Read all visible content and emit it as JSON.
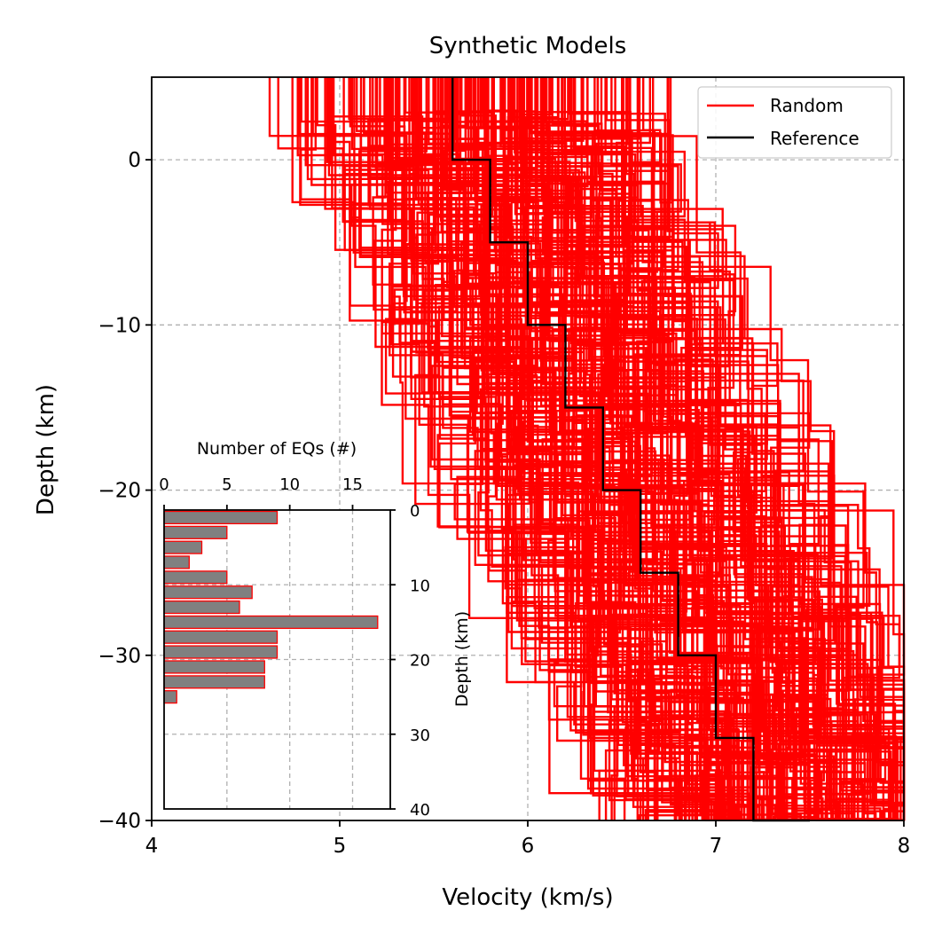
{
  "chart_data": [
    {
      "type": "line",
      "title": "Synthetic Models",
      "xlabel": "Velocity (km/s)",
      "ylabel": "Depth (km)",
      "xlim": [
        4,
        8
      ],
      "ylim": [
        -40,
        5
      ],
      "xticks": [
        "4",
        "5",
        "6",
        "7",
        "8"
      ],
      "yticks": [
        "0",
        "−10",
        "−20",
        "−30",
        "−40"
      ],
      "grid": true,
      "legend_position": "top-right",
      "colors": {
        "random": "#ff0000",
        "reference": "#000000"
      },
      "series": [
        {
          "name": "Random",
          "note_count_estimate": 200,
          "step_profile": true
        },
        {
          "name": "Reference",
          "steps": [
            {
              "velocity": 5.6,
              "top": 5,
              "bottom": 0
            },
            {
              "velocity": 5.8,
              "top": 0,
              "bottom": -5
            },
            {
              "velocity": 6.0,
              "top": -5,
              "bottom": -10
            },
            {
              "velocity": 6.2,
              "top": -10,
              "bottom": -15
            },
            {
              "velocity": 6.4,
              "top": -15,
              "bottom": -20
            },
            {
              "velocity": 6.6,
              "top": -20,
              "bottom": -25
            },
            {
              "velocity": 6.8,
              "top": -25,
              "bottom": -30
            },
            {
              "velocity": 7.0,
              "top": -30,
              "bottom": -35
            },
            {
              "velocity": 7.2,
              "top": -35,
              "bottom": -40
            }
          ]
        }
      ]
    },
    {
      "type": "bar",
      "orientation": "horizontal",
      "title": "",
      "xlabel": "Number of EQs (#)",
      "ylabel": "Depth (km)",
      "xlim": [
        0,
        18
      ],
      "ylim": [
        40,
        0
      ],
      "xticks": [
        "0",
        "5",
        "10",
        "15"
      ],
      "yticks": [
        "0",
        "10",
        "20",
        "30",
        "40"
      ],
      "grid": true,
      "bar_color": "#808080",
      "edge_color": "#ff0000",
      "bins": [
        {
          "from": 0,
          "to": 2,
          "count": 9
        },
        {
          "from": 2,
          "to": 4,
          "count": 5
        },
        {
          "from": 4,
          "to": 6,
          "count": 3
        },
        {
          "from": 6,
          "to": 8,
          "count": 2
        },
        {
          "from": 8,
          "to": 10,
          "count": 5
        },
        {
          "from": 10,
          "to": 12,
          "count": 7
        },
        {
          "from": 12,
          "to": 14,
          "count": 6
        },
        {
          "from": 14,
          "to": 16,
          "count": 17
        },
        {
          "from": 16,
          "to": 18,
          "count": 9
        },
        {
          "from": 18,
          "to": 20,
          "count": 9
        },
        {
          "from": 20,
          "to": 22,
          "count": 8
        },
        {
          "from": 22,
          "to": 24,
          "count": 8
        },
        {
          "from": 24,
          "to": 26,
          "count": 1
        }
      ]
    }
  ]
}
